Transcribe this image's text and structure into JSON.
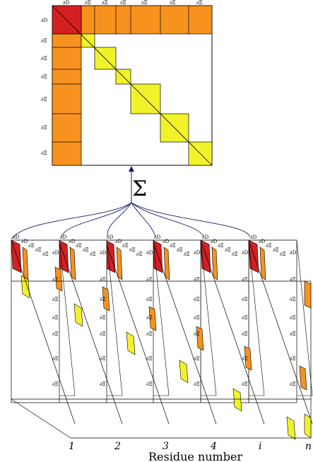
{
  "sum_symbol": "Σ",
  "x_axis_label": "Residue number",
  "top_matrix": {
    "col_labels": [
      "∂D",
      "∂Ξ",
      "∂Ξ",
      "∂Ξ",
      "∂Ξ",
      "∂Ξ",
      "∂Ξ"
    ],
    "row_labels": [
      "∂D",
      "∂Ξ",
      "∂Ξ",
      "∂Ξ",
      "∂Ξ",
      "∂Ξ",
      "∂Ξ"
    ]
  },
  "slices": [
    {
      "residue": "1",
      "block_label": "∂D"
    },
    {
      "residue": "2",
      "block_label": "∂D"
    },
    {
      "residue": "3",
      "block_label": "∂D"
    },
    {
      "residue": "4",
      "block_label": "∂D"
    },
    {
      "residue": "i",
      "block_label": "∂D"
    },
    {
      "residue": "n",
      "block_label": "∂D"
    }
  ],
  "slice_row_labels": [
    "∂D",
    "∂Ξ",
    "∂Ξ",
    "∂Ξ",
    "∂Ξ",
    "∂Ξ",
    "∂Ξ"
  ],
  "colors": {
    "red": "#d42020",
    "orange": "#f7921e",
    "yellow": "#f2f22a",
    "arrow": "#1a1a6e",
    "line": "#000000"
  }
}
